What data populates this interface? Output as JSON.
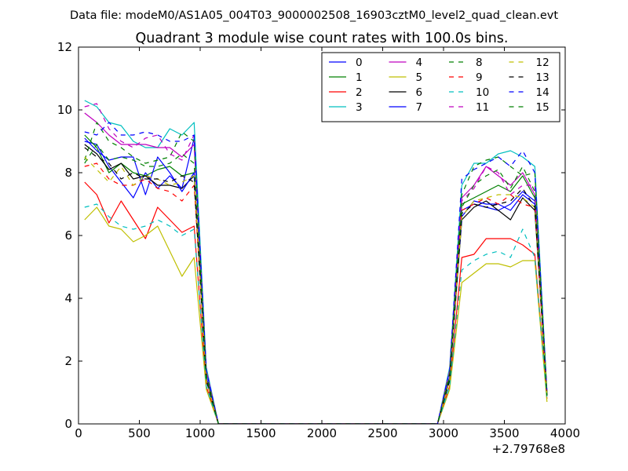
{
  "chart_data": {
    "type": "line",
    "supertitle": "Data file: modeM0/AS1A05_004T03_9000002508_16903cztM0_level2_quad_clean.evt",
    "title": "Quadrant 3 module wise count rates with 100.0s bins.",
    "xlabel": "",
    "ylabel": "",
    "x_offset_label": "+2.79768e8",
    "xlim": [
      0,
      4000
    ],
    "ylim": [
      0,
      12
    ],
    "xticks": [
      0,
      500,
      1000,
      1500,
      2000,
      2500,
      3000,
      3500,
      4000
    ],
    "yticks": [
      0,
      2,
      4,
      6,
      8,
      10,
      12
    ],
    "grid": false,
    "legend": {
      "placement": "top-right",
      "columns": 4
    },
    "x": [
      50,
      150,
      250,
      350,
      450,
      550,
      650,
      750,
      850,
      950,
      1050,
      1150,
      1250,
      1350,
      1450,
      1550,
      1650,
      1750,
      1850,
      1950,
      2050,
      2150,
      2250,
      2350,
      2450,
      2550,
      2650,
      2750,
      2850,
      2950,
      3050,
      3150,
      3250,
      3350,
      3450,
      3550,
      3650,
      3750,
      3850
    ],
    "series": [
      {
        "name": "0",
        "color": "#0000ff",
        "dash": "solid",
        "values": [
          9.0,
          8.9,
          8.2,
          7.7,
          7.2,
          8.0,
          7.5,
          7.9,
          7.5,
          9.1,
          1.5,
          0,
          0,
          0,
          0,
          0,
          0,
          0,
          0,
          0,
          0,
          0,
          0,
          0,
          0,
          0,
          0,
          0,
          0,
          0,
          1.5,
          6.8,
          7.0,
          6.9,
          6.8,
          7.0,
          7.4,
          7.1,
          0.9
        ]
      },
      {
        "name": "1",
        "color": "#008000",
        "dash": "solid",
        "values": [
          9.2,
          8.8,
          8.0,
          8.3,
          8.0,
          7.9,
          8.1,
          8.2,
          7.9,
          8.0,
          1.4,
          0,
          0,
          0,
          0,
          0,
          0,
          0,
          0,
          0,
          0,
          0,
          0,
          0,
          0,
          0,
          0,
          0,
          0,
          0,
          1.4,
          7.0,
          7.2,
          7.4,
          7.6,
          7.4,
          7.9,
          7.2,
          0.9
        ]
      },
      {
        "name": "2",
        "color": "#ff0000",
        "dash": "solid",
        "values": [
          7.7,
          7.3,
          6.4,
          7.1,
          6.5,
          5.9,
          6.9,
          6.5,
          6.1,
          6.3,
          1.2,
          0,
          0,
          0,
          0,
          0,
          0,
          0,
          0,
          0,
          0,
          0,
          0,
          0,
          0,
          0,
          0,
          0,
          0,
          0,
          1.2,
          5.3,
          5.4,
          5.9,
          5.9,
          5.9,
          5.7,
          5.4,
          0.8
        ]
      },
      {
        "name": "3",
        "color": "#00bfbf",
        "dash": "solid",
        "values": [
          10.3,
          10.1,
          9.6,
          9.5,
          9.0,
          8.8,
          8.8,
          9.4,
          9.2,
          9.6,
          1.8,
          0,
          0,
          0,
          0,
          0,
          0,
          0,
          0,
          0,
          0,
          0,
          0,
          0,
          0,
          0,
          0,
          0,
          0,
          0,
          1.8,
          7.6,
          8.3,
          8.3,
          8.6,
          8.7,
          8.5,
          8.2,
          1.0
        ]
      },
      {
        "name": "4",
        "color": "#bf00bf",
        "dash": "solid",
        "values": [
          9.9,
          9.6,
          9.2,
          8.9,
          8.9,
          8.9,
          8.8,
          8.8,
          8.5,
          8.9,
          1.7,
          0,
          0,
          0,
          0,
          0,
          0,
          0,
          0,
          0,
          0,
          0,
          0,
          0,
          0,
          0,
          0,
          0,
          0,
          0,
          1.7,
          7.2,
          7.6,
          8.2,
          7.9,
          7.6,
          8.0,
          7.3,
          1.0
        ]
      },
      {
        "name": "5",
        "color": "#bfbf00",
        "dash": "solid",
        "values": [
          6.5,
          6.9,
          6.3,
          6.2,
          5.8,
          6.0,
          6.3,
          5.5,
          4.7,
          5.3,
          1.1,
          0,
          0,
          0,
          0,
          0,
          0,
          0,
          0,
          0,
          0,
          0,
          0,
          0,
          0,
          0,
          0,
          0,
          0,
          0,
          1.1,
          4.5,
          4.8,
          5.1,
          5.1,
          5.0,
          5.2,
          5.2,
          0.7
        ]
      },
      {
        "name": "6",
        "color": "#000000",
        "dash": "solid",
        "values": [
          8.9,
          8.6,
          8.1,
          8.3,
          7.8,
          7.9,
          7.6,
          7.6,
          7.5,
          7.9,
          1.4,
          0,
          0,
          0,
          0,
          0,
          0,
          0,
          0,
          0,
          0,
          0,
          0,
          0,
          0,
          0,
          0,
          0,
          0,
          0,
          1.4,
          6.5,
          6.9,
          7.1,
          6.8,
          6.5,
          7.2,
          6.8,
          0.9
        ]
      },
      {
        "name": "7",
        "color": "#0000ff",
        "dash": "solid",
        "values": [
          9.1,
          8.7,
          8.4,
          8.5,
          8.5,
          7.3,
          8.5,
          8.0,
          7.4,
          8.0,
          1.4,
          0,
          0,
          0,
          0,
          0,
          0,
          0,
          0,
          0,
          0,
          0,
          0,
          0,
          0,
          0,
          0,
          0,
          0,
          0,
          1.4,
          6.6,
          7.1,
          7.0,
          7.0,
          6.8,
          7.3,
          7.0,
          0.9
        ]
      },
      {
        "name": "8",
        "color": "#008000",
        "dash": "dashed",
        "values": [
          8.4,
          9.6,
          9.0,
          8.8,
          8.5,
          8.3,
          8.4,
          8.5,
          9.3,
          9.0,
          1.6,
          0,
          0,
          0,
          0,
          0,
          0,
          0,
          0,
          0,
          0,
          0,
          0,
          0,
          0,
          0,
          0,
          0,
          0,
          0,
          1.6,
          7.3,
          8.2,
          8.4,
          8.5,
          8.2,
          7.9,
          8.0,
          1.0
        ]
      },
      {
        "name": "9",
        "color": "#ff0000",
        "dash": "dashed",
        "values": [
          8.2,
          8.3,
          7.8,
          7.6,
          7.6,
          7.8,
          7.5,
          7.4,
          7.1,
          7.6,
          1.4,
          0,
          0,
          0,
          0,
          0,
          0,
          0,
          0,
          0,
          0,
          0,
          0,
          0,
          0,
          0,
          0,
          0,
          0,
          0,
          1.4,
          6.8,
          7.0,
          7.2,
          7.0,
          7.3,
          7.0,
          6.9,
          0.9
        ]
      },
      {
        "name": "10",
        "color": "#00bfbf",
        "dash": "dashed",
        "values": [
          6.9,
          7.0,
          6.6,
          6.3,
          6.2,
          6.3,
          6.5,
          6.3,
          6.0,
          6.2,
          1.2,
          0,
          0,
          0,
          0,
          0,
          0,
          0,
          0,
          0,
          0,
          0,
          0,
          0,
          0,
          0,
          0,
          0,
          0,
          0,
          1.2,
          4.9,
          5.2,
          5.4,
          5.5,
          5.3,
          6.2,
          5.3,
          0.8
        ]
      },
      {
        "name": "11",
        "color": "#bf00bf",
        "dash": "dashed",
        "values": [
          10.1,
          10.2,
          9.4,
          9.0,
          8.8,
          9.1,
          9.2,
          8.6,
          8.4,
          9.2,
          1.7,
          0,
          0,
          0,
          0,
          0,
          0,
          0,
          0,
          0,
          0,
          0,
          0,
          0,
          0,
          0,
          0,
          0,
          0,
          0,
          1.7,
          7.1,
          7.5,
          8.2,
          8.0,
          7.3,
          7.6,
          7.6,
          1.0
        ]
      },
      {
        "name": "12",
        "color": "#bfbf00",
        "dash": "dashed",
        "values": [
          8.5,
          8.1,
          7.7,
          8.2,
          7.6,
          7.9,
          7.8,
          7.6,
          7.7,
          7.9,
          1.4,
          0,
          0,
          0,
          0,
          0,
          0,
          0,
          0,
          0,
          0,
          0,
          0,
          0,
          0,
          0,
          0,
          0,
          0,
          0,
          1.4,
          6.6,
          7.1,
          7.2,
          7.3,
          7.3,
          7.2,
          6.9,
          0.9
        ]
      },
      {
        "name": "13",
        "color": "#000000",
        "dash": "dashed",
        "values": [
          8.8,
          8.5,
          8.3,
          7.8,
          8.0,
          7.8,
          7.8,
          7.7,
          7.9,
          7.7,
          1.4,
          0,
          0,
          0,
          0,
          0,
          0,
          0,
          0,
          0,
          0,
          0,
          0,
          0,
          0,
          0,
          0,
          0,
          0,
          0,
          1.4,
          6.7,
          7.0,
          6.9,
          7.0,
          7.1,
          7.5,
          6.9,
          0.9
        ]
      },
      {
        "name": "14",
        "color": "#0000ff",
        "dash": "dashed",
        "values": [
          9.3,
          9.2,
          9.6,
          9.2,
          9.2,
          9.3,
          9.2,
          9.0,
          9.0,
          9.2,
          1.7,
          0,
          0,
          0,
          0,
          0,
          0,
          0,
          0,
          0,
          0,
          0,
          0,
          0,
          0,
          0,
          0,
          0,
          0,
          0,
          1.7,
          7.8,
          8.1,
          8.3,
          8.5,
          8.2,
          8.7,
          8.0,
          1.0
        ]
      },
      {
        "name": "15",
        "color": "#008000",
        "dash": "dashed",
        "values": [
          8.3,
          8.9,
          8.4,
          8.5,
          8.4,
          8.2,
          8.2,
          8.3,
          8.6,
          8.3,
          1.5,
          0,
          0,
          0,
          0,
          0,
          0,
          0,
          0,
          0,
          0,
          0,
          0,
          0,
          0,
          0,
          0,
          0,
          0,
          0,
          1.5,
          6.9,
          7.6,
          7.9,
          8.1,
          7.5,
          8.2,
          7.4,
          0.9
        ]
      }
    ]
  }
}
